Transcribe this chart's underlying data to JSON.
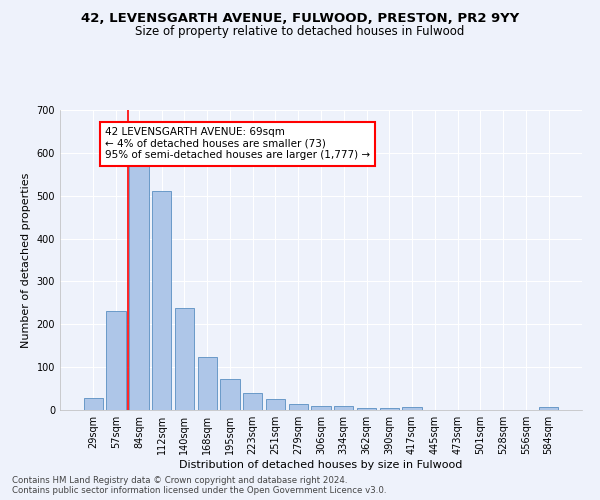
{
  "title1": "42, LEVENSGARTH AVENUE, FULWOOD, PRESTON, PR2 9YY",
  "title2": "Size of property relative to detached houses in Fulwood",
  "xlabel": "Distribution of detached houses by size in Fulwood",
  "ylabel": "Number of detached properties",
  "categories": [
    "29sqm",
    "57sqm",
    "84sqm",
    "112sqm",
    "140sqm",
    "168sqm",
    "195sqm",
    "223sqm",
    "251sqm",
    "279sqm",
    "306sqm",
    "334sqm",
    "362sqm",
    "390sqm",
    "417sqm",
    "445sqm",
    "473sqm",
    "501sqm",
    "528sqm",
    "556sqm",
    "584sqm"
  ],
  "values": [
    27,
    232,
    575,
    510,
    238,
    123,
    72,
    40,
    26,
    15,
    10,
    10,
    5,
    5,
    8,
    0,
    0,
    0,
    0,
    0,
    7
  ],
  "bar_color": "#aec6e8",
  "bar_edge_color": "#5a8fc2",
  "vline_color": "red",
  "vline_x": 1.5,
  "annotation_text": "42 LEVENSGARTH AVENUE: 69sqm\n← 4% of detached houses are smaller (73)\n95% of semi-detached houses are larger (1,777) →",
  "annotation_box_color": "white",
  "annotation_box_edge_color": "red",
  "ylim": [
    0,
    700
  ],
  "yticks": [
    0,
    100,
    200,
    300,
    400,
    500,
    600,
    700
  ],
  "footer1": "Contains HM Land Registry data © Crown copyright and database right 2024.",
  "footer2": "Contains public sector information licensed under the Open Government Licence v3.0.",
  "bg_color": "#eef2fb",
  "grid_color": "#ffffff",
  "title1_fontsize": 9.5,
  "title2_fontsize": 8.5,
  "axis_label_fontsize": 8,
  "tick_fontsize": 7,
  "annotation_fontsize": 7.5,
  "footer_fontsize": 6.2
}
